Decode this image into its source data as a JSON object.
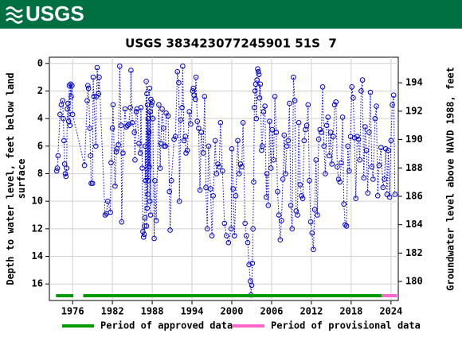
{
  "header": {
    "logo_text": "USGS"
  },
  "chart_data": {
    "type": "scatter",
    "title": "USGS 383423077245901 51S  7",
    "y_label": [
      "Depth to water level, feet below land",
      "surface"
    ],
    "y2_label": "Groundwater level above NAVD 1988, feet",
    "xlim": [
      1972.5,
      2025.1
    ],
    "xticks": [
      1976,
      1982,
      1988,
      1994,
      2000,
      2006,
      2012,
      2018,
      2024
    ],
    "ylim": [
      -0.45,
      17.2
    ],
    "y_inverted": true,
    "yticks": [
      0,
      2,
      4,
      6,
      8,
      10,
      12,
      14,
      16
    ],
    "y2lim": [
      178.66,
      195.8
    ],
    "y2ticks": [
      180,
      182,
      184,
      186,
      188,
      190,
      192,
      194
    ],
    "grid": true,
    "series": [
      {
        "color": "#0000cc",
        "x": [
          1973.6,
          1973.7,
          1973.8,
          1974.1,
          1974.3,
          1974.5,
          1974.6,
          1974.7,
          1974.8,
          1974.9,
          1975.0,
          1975.1,
          1975.2,
          1975.3,
          1975.4,
          1975.5,
          1975.6,
          1975.7,
          1975.8,
          1975.9,
          1976.0,
          1977.8,
          1978.2,
          1978.3,
          1978.4,
          1978.6,
          1978.7,
          1978.8,
          1979.0,
          1979.1,
          1979.2,
          1979.5,
          1979.6,
          1979.7,
          1979.9,
          1980.0,
          1980.9,
          1981.1,
          1981.3,
          1981.7,
          1981.8,
          1982.0,
          1982.1,
          1982.4,
          1982.6,
          1982.7,
          1982.9,
          1983.1,
          1983.3,
          1983.4,
          1983.6,
          1983.9,
          1984.1,
          1984.3,
          1984.5,
          1984.7,
          1984.8,
          1985.0,
          1985.3,
          1985.4,
          1985.6,
          1985.7,
          1986.0,
          1986.2,
          1986.3,
          1986.5,
          1986.6,
          1986.7,
          1986.8,
          1986.85,
          1986.9,
          1986.95,
          1987.0,
          1987.1,
          1987.15,
          1987.2,
          1987.25,
          1987.3,
          1987.35,
          1987.4,
          1987.45,
          1987.5,
          1987.55,
          1987.6,
          1987.65,
          1987.7,
          1987.75,
          1987.8,
          1987.9,
          1988.0,
          1988.1,
          1988.3,
          1988.4,
          1988.6,
          1989.0,
          1989.2,
          1989.3,
          1989.5,
          1989.7,
          1989.8,
          1990.0,
          1990.1,
          1990.4,
          1990.6,
          1990.7,
          1990.9,
          1991.3,
          1991.5,
          1991.8,
          1992.0,
          1992.1,
          1992.3,
          1992.5,
          1992.6,
          1992.8,
          1993.0,
          1993.1,
          1993.3,
          1993.6,
          1993.8,
          1994.1,
          1994.2,
          1994.3,
          1994.5,
          1994.6,
          1994.8,
          1995.0,
          1995.2,
          1995.4,
          1995.7,
          1995.9,
          1996.1,
          1996.3,
          1996.5,
          1996.8,
          1997.0,
          1997.2,
          1997.5,
          1997.7,
          1997.9,
          1998.1,
          1998.3,
          1998.6,
          1998.9,
          1999.2,
          1999.5,
          1999.9,
          2000.0,
          2000.2,
          2000.4,
          2000.6,
          2000.9,
          2001.1,
          2001.3,
          2001.5,
          2001.7,
          2002.0,
          2002.2,
          2002.4,
          2002.6,
          2002.8,
          2002.9,
          2003.0,
          2003.1,
          2003.2,
          2003.3,
          2003.4,
          2003.5,
          2003.6,
          2003.7,
          2003.8,
          2003.9,
          2004.0,
          2004.1,
          2004.2,
          2004.3,
          2004.5,
          2004.6,
          2004.8,
          2005.0,
          2005.2,
          2005.3,
          2005.5,
          2005.7,
          2005.9,
          2006.1,
          2006.3,
          2006.5,
          2006.7,
          2006.9,
          2007.1,
          2007.3,
          2007.5,
          2007.7,
          2007.9,
          2008.1,
          2008.3,
          2008.5,
          2008.7,
          2008.9,
          2009.1,
          2009.3,
          2009.5,
          2009.7,
          2009.9,
          2010.1,
          2010.3,
          2010.5,
          2010.7,
          2010.9,
          2011.1,
          2011.3,
          2011.5,
          2011.7,
          2011.9,
          2012.1,
          2012.3,
          2012.5,
          2012.7,
          2012.9,
          2013.1,
          2013.3,
          2013.5,
          2013.7,
          2013.9,
          2014.1,
          2014.3,
          2014.5,
          2014.7,
          2014.9,
          2015.1,
          2015.3,
          2015.5,
          2015.7,
          2015.9,
          2016.1,
          2016.3,
          2016.5,
          2016.7,
          2016.9,
          2017.1,
          2017.3,
          2017.5,
          2017.7,
          2017.9,
          2018.1,
          2018.3,
          2018.5,
          2018.7,
          2018.9,
          2019.1,
          2019.3,
          2019.5,
          2019.7,
          2019.9,
          2020.1,
          2020.3,
          2020.5,
          2020.7,
          2020.9,
          2021.1,
          2021.3,
          2021.6,
          2021.8,
          2022.0,
          2022.2,
          2022.5,
          2022.8,
          2023.0,
          2023.2,
          2023.4,
          2023.6,
          2023.8,
          2024.0,
          2024.2,
          2024.4,
          2024.6
        ],
        "values": [
          7.8,
          7.6,
          6.7,
          3.7,
          3.0,
          2.7,
          4.0,
          5.6,
          7.3,
          8.0,
          8.2,
          7.6,
          3.3,
          2.9,
          4.2,
          1.6,
          4.5,
          1.5,
          2.4,
          1.6,
          3.7,
          7.4,
          2.7,
          1.6,
          1.8,
          4.7,
          6.7,
          8.7,
          8.7,
          1.0,
          2.4,
          6.0,
          2.4,
          0.3,
          2.2,
          1.0,
          11.0,
          10.9,
          10.0,
          10.8,
          7.2,
          4.7,
          3.0,
          8.9,
          6.4,
          6.2,
          5.9,
          0.2,
          4.5,
          11.5,
          6.5,
          3.3,
          4.6,
          4.5,
          4.4,
          3.2,
          0.5,
          4.3,
          5.0,
          7.0,
          3.5,
          3.3,
          5.8,
          6.5,
          3.2,
          7.6,
          12.2,
          12.6,
          12.4,
          11.8,
          11.2,
          6.0,
          8.5,
          1.3,
          11.8,
          2.2,
          10.5,
          3.0,
          9.5,
          4.0,
          8.5,
          5.0,
          7.5,
          1.8,
          10.0,
          3.5,
          11.0,
          2.6,
          3.0,
          2.8,
          4.0,
          12.7,
          8.5,
          11.4,
          3.0,
          7.6,
          5.8,
          3.3,
          4.7,
          6.0,
          6.0,
          3.6,
          3.8,
          9.3,
          12.1,
          8.5,
          5.5,
          5.3,
          0.6,
          1.4,
          10.0,
          4.1,
          3.2,
          0.2,
          5.6,
          5.3,
          6.5,
          6.3,
          3.5,
          4.4,
          2.0,
          1.8,
          2.3,
          2.6,
          1.0,
          4.2,
          4.7,
          9.2,
          5.0,
          6.5,
          2.4,
          9.0,
          12.0,
          6.0,
          9.1,
          12.5,
          9.6,
          5.6,
          8.0,
          7.3,
          7.5,
          4.3,
          7.8,
          11.6,
          12.5,
          13.0,
          12.0,
          6.2,
          9.1,
          12.5,
          9.6,
          5.6,
          8.0,
          7.3,
          7.5,
          4.3,
          11.6,
          12.5,
          13.0,
          14.6,
          15.8,
          16.8,
          16.1,
          14.5,
          12.0,
          8.6,
          3.2,
          2.0,
          1.5,
          4.0,
          1.2,
          0.4,
          0.6,
          0.8,
          2.5,
          1.5,
          6.3,
          6.0,
          3.5,
          3.1,
          9.7,
          8.0,
          10.3,
          4.2,
          7.6,
          4.8,
          7.0,
          2.4,
          5.0,
          9.3,
          11.0,
          12.8,
          11.4,
          8.4,
          5.2,
          8.0,
          6.0,
          5.6,
          2.9,
          10.3,
          12.0,
          1.0,
          2.7,
          10.7,
          11.0,
          4.3,
          8.8,
          9.6,
          9.8,
          5.6,
          4.8,
          4.5,
          3.0,
          8.5,
          11.5,
          12.3,
          13.5,
          10.6,
          7.0,
          11.0,
          5.5,
          4.8,
          5.0,
          1.7,
          6.0,
          8.0,
          4.5,
          3.9,
          6.7,
          5.0,
          7.3,
          5.3,
          3.0,
          2.8,
          7.5,
          8.4,
          8.6,
          7.2,
          3.9,
          10.2,
          11.7,
          11.8,
          6.0,
          7.8,
          5.3,
          1.7,
          2.5,
          5.4,
          9.8,
          5.3,
          5.5,
          7.0,
          2.0,
          1.2,
          8.3,
          4.6,
          6.3,
          9.4,
          5.0,
          2.1,
          7.5,
          8.4,
          4.0,
          3.1,
          9.6,
          7.4,
          6.1,
          9.0,
          8.4,
          6.2,
          9.5,
          6.3,
          9.7,
          5.6,
          3.0,
          2.3,
          9.5
        ]
      }
    ],
    "periods": [
      {
        "name": "Period of approved data",
        "color": "#009900",
        "ranges": [
          [
            1973.5,
            1976.1
          ],
          [
            1977.6,
            2022.6
          ]
        ]
      },
      {
        "name": "Period of provisional data",
        "color": "#ff66cc",
        "ranges": [
          [
            2022.6,
            2024.9
          ]
        ]
      }
    ]
  }
}
